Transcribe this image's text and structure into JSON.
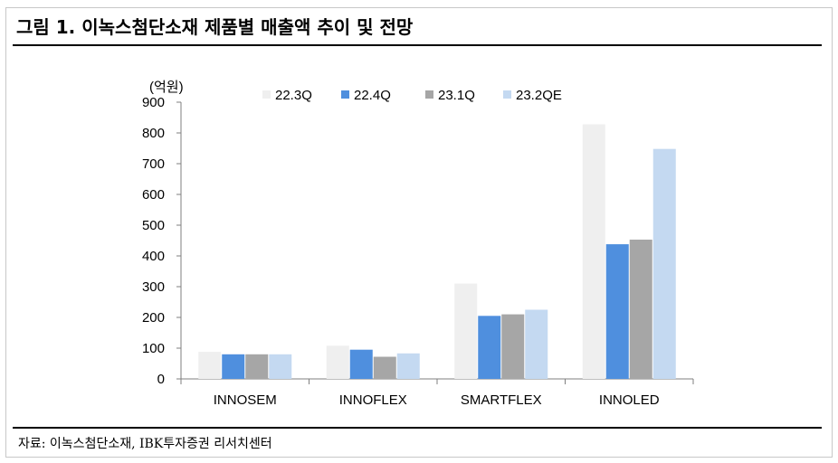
{
  "figure": {
    "title": "그림 1. 이녹스첨단소재 제품별 매출액 추이 및 전망",
    "source": "자료: 이녹스첨단소재, IBK투자증권 리서치센터"
  },
  "colors": {
    "series": [
      "#efefef",
      "#4f8fde",
      "#a6a6a6",
      "#c4d9f1"
    ],
    "axis": "#7f7f7f",
    "text": "#000000"
  },
  "chart_data": {
    "type": "bar",
    "title": "",
    "unit_label": "(억원)",
    "xlabel": "",
    "ylabel": "",
    "categories": [
      "INNOSEM",
      "INNOFLEX",
      "SMARTFLEX",
      "INNOLED"
    ],
    "series": [
      {
        "name": "22.3Q",
        "values": [
          88,
          108,
          310,
          828
        ]
      },
      {
        "name": "22.4Q",
        "values": [
          80,
          95,
          205,
          438
        ]
      },
      {
        "name": "23.1Q",
        "values": [
          80,
          72,
          210,
          453
        ]
      },
      {
        "name": "23.2QE",
        "values": [
          80,
          83,
          225,
          748
        ]
      }
    ],
    "ylim": [
      0,
      900
    ],
    "yticks": [
      0,
      100,
      200,
      300,
      400,
      500,
      600,
      700,
      800,
      900
    ],
    "grid": false,
    "legend_position": "top"
  }
}
